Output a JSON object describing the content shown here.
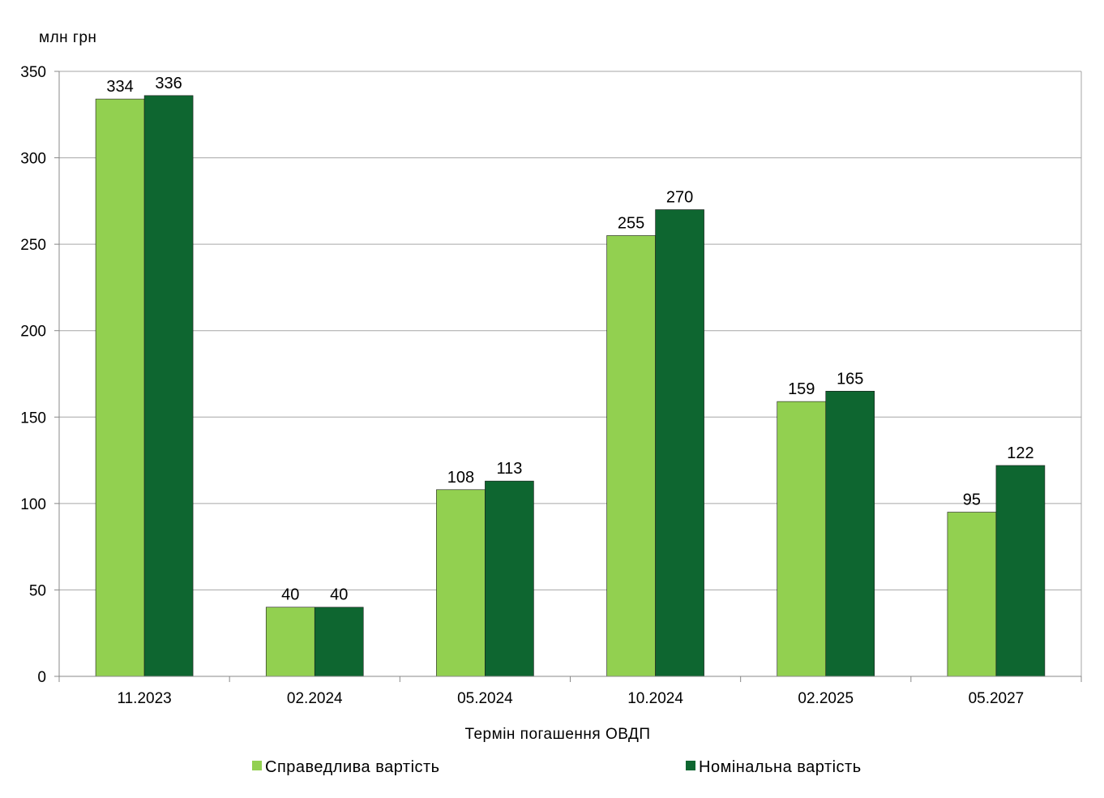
{
  "chart_data": {
    "type": "bar",
    "title": "",
    "ylabel": "млн грн",
    "xlabel": "Термін погашення ОВДП",
    "ylim": [
      0,
      350
    ],
    "yticks": [
      0,
      50,
      100,
      150,
      200,
      250,
      300,
      350
    ],
    "grid": true,
    "legend_position": "bottom",
    "categories": [
      "11.2023",
      "02.2024",
      "05.2024",
      "10.2024",
      "02.2025",
      "05.2027"
    ],
    "series": [
      {
        "name": "Справедлива вартість",
        "color": "#92d050",
        "values": [
          334,
          40,
          108,
          255,
          159,
          95
        ]
      },
      {
        "name": "Номінальна вартість",
        "color": "#0e6630",
        "values": [
          336,
          40,
          113,
          270,
          165,
          122
        ]
      }
    ]
  }
}
